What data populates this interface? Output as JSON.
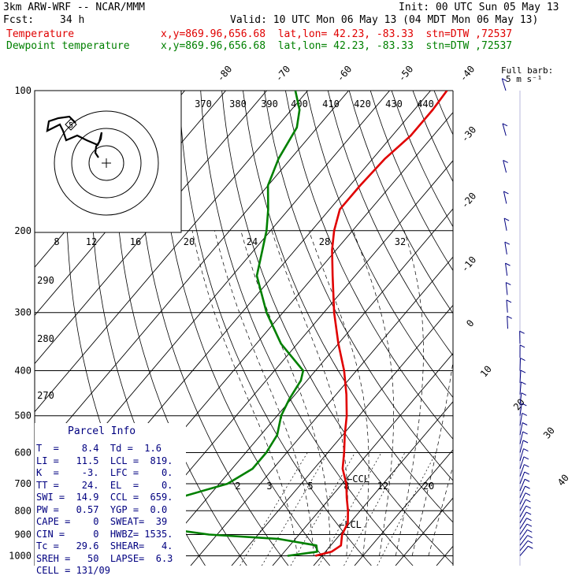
{
  "header": {
    "model": "3km ARW-WRF -- NCAR/MMM",
    "init": "Init: 00 UTC Sun 05 May 13",
    "fcst_label": "Fcst:",
    "fcst_value": "34 h",
    "valid": "Valid: 10 UTC Mon 06 May 13 (04 MDT Mon 06 May 13)",
    "temp_label": "Temperature",
    "temp_info": "x,y=869.96,656.68  lat,lon= 42.23, -83.33  stn=DTW ,72537",
    "dew_label": "Dewpoint temperature",
    "dew_info": "x,y=869.96,656.68  lat,lon= 42.23, -83.33  stn=DTW ,72537",
    "fullbarb_1": "Full barb:",
    "fullbarb_2": "5 m s⁻¹"
  },
  "colors": {
    "temperature": "#e00000",
    "dewpoint": "#008000",
    "info": "#000080",
    "barb": "#000080"
  },
  "chart_data": {
    "type": "line",
    "title": "",
    "pressure_levels": [
      100,
      200,
      300,
      400,
      500,
      600,
      700,
      800,
      900,
      1000
    ],
    "skewed_isotherm_labels": [
      "-80",
      "-70",
      "-60",
      "-50",
      "-40",
      "-30",
      "-20",
      "-10",
      "0",
      "10",
      "20",
      "30",
      "40"
    ],
    "theta_e_labels_top": [
      "370",
      "380",
      "390",
      "400",
      "410",
      "420",
      "430",
      "440"
    ],
    "theta_labels_left": [
      "290",
      "280",
      "270"
    ],
    "hodograph_labels": [
      "kts",
      "8",
      "12",
      "16",
      "20",
      "24",
      "28",
      "32"
    ],
    "mixing_ratio_labels": [
      "2",
      "3",
      "5",
      "8",
      "12",
      "20"
    ],
    "annotations": [
      "CCL",
      "LCL"
    ],
    "hodograph_ring_label": "5",
    "series": [
      {
        "name": "Temperature",
        "points": [
          [
            1000,
            8.4
          ],
          [
            980,
            11.5
          ],
          [
            950,
            12.5
          ],
          [
            900,
            10.5
          ],
          [
            850,
            9.5
          ],
          [
            800,
            7.0
          ],
          [
            750,
            4.0
          ],
          [
            700,
            1.0
          ],
          [
            650,
            -3.0
          ],
          [
            600,
            -6.0
          ],
          [
            550,
            -9.5
          ],
          [
            500,
            -13.0
          ],
          [
            450,
            -17.5
          ],
          [
            400,
            -23.0
          ],
          [
            350,
            -30.0
          ],
          [
            300,
            -37.5
          ],
          [
            250,
            -45.5
          ],
          [
            220,
            -51.0
          ],
          [
            200,
            -54.5
          ],
          [
            180,
            -57.5
          ],
          [
            160,
            -57.5
          ],
          [
            140,
            -57.0
          ],
          [
            125,
            -55.5
          ],
          [
            110,
            -55.5
          ],
          [
            100,
            -56.0
          ]
        ]
      },
      {
        "name": "Dewpoint temperature",
        "points": [
          [
            1000,
            1.6
          ],
          [
            980,
            8.0
          ],
          [
            950,
            6.5
          ],
          [
            920,
            -4.0
          ],
          [
            900,
            -22.0
          ],
          [
            850,
            -45.0
          ],
          [
            830,
            -52.0
          ],
          [
            800,
            -51.0
          ],
          [
            750,
            -37.0
          ],
          [
            700,
            -28.0
          ],
          [
            650,
            -25.0
          ],
          [
            600,
            -25.0
          ],
          [
            550,
            -26.0
          ],
          [
            500,
            -29.0
          ],
          [
            460,
            -30.5
          ],
          [
            420,
            -31.5
          ],
          [
            400,
            -33.0
          ],
          [
            350,
            -44.0
          ],
          [
            300,
            -54.0
          ],
          [
            250,
            -64.0
          ],
          [
            220,
            -68.0
          ],
          [
            200,
            -71.0
          ],
          [
            180,
            -75.0
          ],
          [
            160,
            -80.0
          ],
          [
            140,
            -83.0
          ],
          [
            120,
            -85.0
          ],
          [
            110,
            -88.0
          ],
          [
            100,
            -93.0
          ]
        ]
      }
    ]
  },
  "parcel": {
    "title": "Parcel Info",
    "rows": [
      "T  =    8.4  Td =  1.6",
      "LI =   11.5  LCL =  819.",
      "K  =    -3.  LFC =    0.",
      "TT =    24.  EL  =    0.",
      "SWI =  14.9  CCL =  659.",
      "PW =   0.57  YGP =  0.0",
      "CAPE =    0  SWEAT=  39",
      "CIN =     0  HWBZ= 1535.",
      "Tc =   29.6  SHEAR=   4.",
      "SREH =   50  LAPSE=  6.3",
      "CELL = 131/09"
    ]
  }
}
